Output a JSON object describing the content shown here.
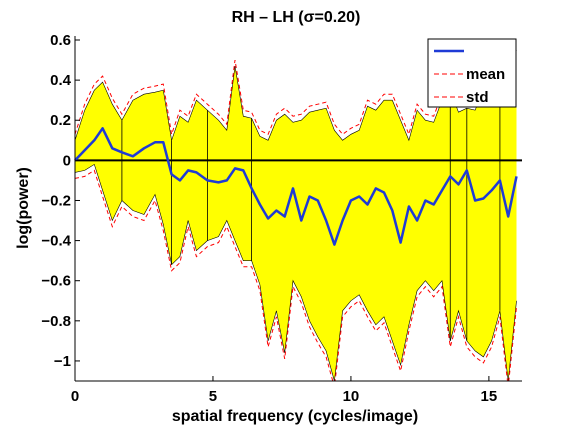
{
  "chart_data": {
    "type": "area",
    "title": "RH – LH (σ=0.20)",
    "xlabel": "spatial frequency (cycles/image)",
    "ylabel": "log(power)",
    "xlim": [
      0,
      16.2
    ],
    "ylim": [
      -1.1,
      0.62
    ],
    "xticks": [
      0,
      5,
      10,
      15
    ],
    "xtick_labels": [
      "0",
      "5",
      "10",
      "15"
    ],
    "yticks": [
      0.6,
      0.4,
      0.2,
      0,
      -0.2,
      -0.4,
      -0.6,
      -0.8,
      -1
    ],
    "ytick_labels": [
      "0.6",
      "0.4",
      "0.2",
      "0",
      "−0.2",
      "−0.4",
      "−0.6",
      "−0.8",
      "−1"
    ],
    "zero_line": true,
    "grid": false,
    "legend_position": "top-right",
    "legend": [
      {
        "label": "",
        "style": "solid",
        "color": "#1f3bd6"
      },
      {
        "label": "mean",
        "style": "dashed",
        "color": "#ff0000"
      },
      {
        "label": "std",
        "style": "dashed",
        "color": "#ff0000"
      }
    ],
    "fill_color": "#ffff00",
    "x": [
      0,
      0.35,
      0.7,
      1.0,
      1.35,
      1.7,
      2.1,
      2.5,
      2.9,
      3.2,
      3.5,
      3.8,
      4.1,
      4.4,
      4.8,
      5.2,
      5.5,
      5.8,
      6.1,
      6.4,
      6.7,
      7.0,
      7.3,
      7.6,
      7.9,
      8.2,
      8.5,
      8.8,
      9.1,
      9.4,
      9.7,
      10.0,
      10.3,
      10.6,
      10.9,
      11.2,
      11.5,
      11.8,
      12.1,
      12.4,
      12.7,
      13.0,
      13.3,
      13.6,
      13.9,
      14.2,
      14.5,
      14.8,
      15.1,
      15.4,
      15.7,
      16.0
    ],
    "series": [
      {
        "name": "mean",
        "color": "#1f3bd6",
        "values": [
          0.0,
          0.05,
          0.1,
          0.16,
          0.06,
          0.04,
          0.02,
          0.06,
          0.09,
          0.09,
          -0.07,
          -0.1,
          -0.05,
          -0.06,
          -0.1,
          -0.11,
          -0.1,
          -0.04,
          -0.05,
          -0.14,
          -0.22,
          -0.29,
          -0.25,
          -0.28,
          -0.14,
          -0.3,
          -0.18,
          -0.2,
          -0.3,
          -0.42,
          -0.3,
          -0.2,
          -0.18,
          -0.22,
          -0.14,
          -0.16,
          -0.25,
          -0.41,
          -0.23,
          -0.3,
          -0.2,
          -0.22,
          -0.15,
          -0.08,
          -0.12,
          -0.05,
          -0.2,
          -0.19,
          -0.15,
          -0.1,
          -0.28,
          -0.08
        ]
      },
      {
        "name": "std (upper)",
        "color": "#ff0000",
        "values": [
          0.1,
          0.25,
          0.35,
          0.39,
          0.28,
          0.2,
          0.3,
          0.33,
          0.34,
          0.35,
          0.1,
          0.22,
          0.19,
          0.3,
          0.25,
          0.2,
          0.15,
          0.47,
          0.22,
          0.21,
          0.12,
          0.1,
          0.2,
          0.23,
          0.19,
          0.2,
          0.24,
          0.25,
          0.26,
          0.15,
          0.1,
          0.13,
          0.15,
          0.27,
          0.25,
          0.3,
          0.3,
          0.2,
          0.1,
          0.25,
          0.2,
          0.19,
          0.3,
          0.35,
          0.24,
          0.26,
          0.25,
          0.35,
          0.3,
          0.45,
          0.47,
          0.55
        ]
      },
      {
        "name": "std (lower)",
        "color": "#ff0000",
        "values": [
          -0.06,
          -0.05,
          -0.02,
          -0.15,
          -0.3,
          -0.2,
          -0.25,
          -0.27,
          -0.17,
          -0.32,
          -0.52,
          -0.48,
          -0.3,
          -0.45,
          -0.4,
          -0.38,
          -0.3,
          -0.4,
          -0.5,
          -0.5,
          -0.62,
          -0.9,
          -0.75,
          -0.96,
          -0.6,
          -0.68,
          -0.8,
          -0.88,
          -0.95,
          -1.1,
          -0.75,
          -0.7,
          -0.67,
          -0.75,
          -0.82,
          -0.78,
          -0.9,
          -1.02,
          -0.82,
          -0.65,
          -0.6,
          -0.65,
          -0.6,
          -0.9,
          -0.75,
          -0.9,
          -0.95,
          -0.98,
          -0.9,
          -0.75,
          -1.1,
          -0.7
        ]
      }
    ]
  }
}
